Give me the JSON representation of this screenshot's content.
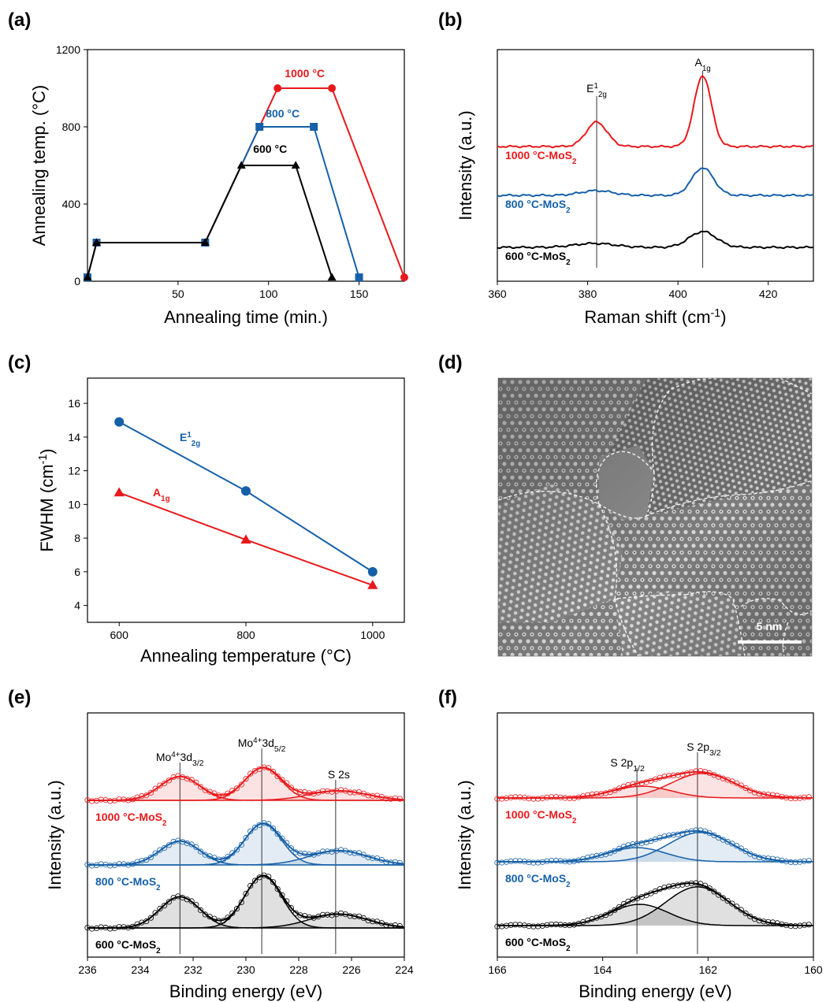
{
  "colors": {
    "red": "#e8191c",
    "blue": "#1660a8",
    "black": "#000000"
  },
  "panels": [
    {
      "label": "(a)",
      "chart_data": {
        "type": "line",
        "xlabel": "Annealing time (min.)",
        "ylabel": "Annealing temp. (°C)",
        "xlim": [
          0,
          175
        ],
        "ylim": [
          0,
          1200
        ],
        "xticks": [
          50,
          100,
          150
        ],
        "yticks": [
          0,
          400,
          800,
          1200
        ],
        "series": [
          {
            "name": "600 °C",
            "color": "black",
            "marker": "triangle",
            "x": [
              0,
              5,
              65,
              85,
              115,
              135
            ],
            "y": [
              20,
              200,
              200,
              600,
              600,
              20
            ]
          },
          {
            "name": "800 °C",
            "color": "blue",
            "marker": "square",
            "x": [
              0,
              5,
              65,
              95,
              125,
              150
            ],
            "y": [
              20,
              200,
              200,
              800,
              800,
              20
            ]
          },
          {
            "name": "1000 °C",
            "color": "red",
            "marker": "circle",
            "x": [
              0,
              5,
              65,
              105,
              135,
              175
            ],
            "y": [
              20,
              200,
              200,
              1000,
              1000,
              20
            ]
          }
        ]
      }
    },
    {
      "label": "(b)",
      "chart_data": {
        "type": "line",
        "xlabel": "Raman shift (cm-1)",
        "ylabel": "Intensity (a.u.)",
        "xlim": [
          360,
          430
        ],
        "xticks": [
          360,
          380,
          400,
          420
        ],
        "peak_markers": [
          {
            "label": "E12g",
            "x": 382.0
          },
          {
            "label": "A1g",
            "x": 405.5
          }
        ],
        "series": [
          {
            "name": "1000 °C-MoS2",
            "color": "red",
            "baseline": 2.6,
            "peaks": [
              {
                "center": 382.0,
                "height": 0.62,
                "width": 2.3
              },
              {
                "center": 405.5,
                "height": 1.8,
                "width": 1.9
              }
            ]
          },
          {
            "name": "800 °C-MoS2",
            "color": "blue",
            "baseline": 1.3,
            "peaks": [
              {
                "center": 382.0,
                "height": 0.12,
                "width": 3.5
              },
              {
                "center": 405.5,
                "height": 0.7,
                "width": 2.4
              }
            ]
          },
          {
            "name": "600 °C-MoS2",
            "color": "black",
            "baseline": 0.0,
            "peaks": [
              {
                "center": 381.5,
                "height": 0.1,
                "width": 4.5
              },
              {
                "center": 405.5,
                "height": 0.4,
                "width": 3.0
              }
            ]
          }
        ]
      }
    },
    {
      "label": "(c)",
      "chart_data": {
        "type": "line",
        "xlabel": "Annealing temperature (°C)",
        "ylabel": "FWHM (cm-1)",
        "xlim": [
          550,
          1050
        ],
        "ylim": [
          3,
          17.5
        ],
        "xticks": [
          600,
          800,
          1000
        ],
        "yticks": [
          4,
          6,
          8,
          10,
          12,
          14,
          16
        ],
        "series": [
          {
            "name": "E12g",
            "color": "blue",
            "marker": "circle",
            "x": [
              600,
              800,
              1000
            ],
            "y": [
              14.9,
              10.8,
              6.0
            ]
          },
          {
            "name": "A1g",
            "color": "red",
            "marker": "triangle",
            "x": [
              600,
              800,
              1000
            ],
            "y": [
              10.7,
              7.9,
              5.2
            ]
          }
        ]
      }
    },
    {
      "label": "(d)",
      "image": {
        "scale_bar": "5 nm"
      }
    },
    {
      "label": "(e)",
      "chart_data": {
        "type": "line",
        "xlabel": "Binding energy (eV)",
        "ylabel": "Intensity (a.u.)",
        "xlim": [
          236,
          224
        ],
        "reversed_x": true,
        "xticks": [
          236,
          234,
          232,
          230,
          228,
          226,
          224
        ],
        "peak_markers": [
          {
            "label": "Mo4+3d3/2",
            "x": 232.5
          },
          {
            "label": "Mo4+3d5/2",
            "x": 229.4
          },
          {
            "label": "S 2s",
            "x": 226.6
          }
        ],
        "series": [
          {
            "name": "1000 °C-MoS2",
            "color": "red",
            "baseline": 2.8,
            "peaks": [
              {
                "center": 232.5,
                "height": 0.55,
                "width": 0.75
              },
              {
                "center": 229.35,
                "height": 0.75,
                "width": 0.7
              },
              {
                "center": 226.5,
                "height": 0.22,
                "width": 1.1
              }
            ]
          },
          {
            "name": "800 °C-MoS2",
            "color": "blue",
            "baseline": 1.4,
            "peaks": [
              {
                "center": 232.5,
                "height": 0.55,
                "width": 0.75
              },
              {
                "center": 229.35,
                "height": 0.95,
                "width": 0.7
              },
              {
                "center": 226.5,
                "height": 0.33,
                "width": 1.1
              }
            ]
          },
          {
            "name": "600 °C-MoS2",
            "color": "black",
            "baseline": 0.0,
            "peaks": [
              {
                "center": 232.5,
                "height": 0.72,
                "width": 0.75
              },
              {
                "center": 229.35,
                "height": 1.2,
                "width": 0.7
              },
              {
                "center": 226.5,
                "height": 0.32,
                "width": 1.1
              }
            ]
          }
        ]
      }
    },
    {
      "label": "(f)",
      "chart_data": {
        "type": "line",
        "xlabel": "Binding energy (eV)",
        "ylabel": "Intensity (a.u.)",
        "xlim": [
          166,
          160
        ],
        "reversed_x": true,
        "xticks": [
          166,
          164,
          162,
          160
        ],
        "peak_markers": [
          {
            "label": "S 2p1/2",
            "x": 163.35
          },
          {
            "label": "S 2p3/2",
            "x": 162.2
          }
        ],
        "series": [
          {
            "name": "1000 °C-MoS2",
            "color": "red",
            "baseline": 2.7,
            "peaks": [
              {
                "center": 163.25,
                "height": 0.25,
                "width": 0.55
              },
              {
                "center": 162.1,
                "height": 0.52,
                "width": 0.6
              }
            ]
          },
          {
            "name": "800 °C-MoS2",
            "color": "blue",
            "baseline": 1.35,
            "peaks": [
              {
                "center": 163.35,
                "height": 0.3,
                "width": 0.55
              },
              {
                "center": 162.15,
                "height": 0.62,
                "width": 0.6
              }
            ]
          },
          {
            "name": "600 °C-MoS2",
            "color": "black",
            "baseline": 0.0,
            "peaks": [
              {
                "center": 163.3,
                "height": 0.45,
                "width": 0.55
              },
              {
                "center": 162.2,
                "height": 0.82,
                "width": 0.6
              }
            ]
          }
        ]
      }
    }
  ]
}
